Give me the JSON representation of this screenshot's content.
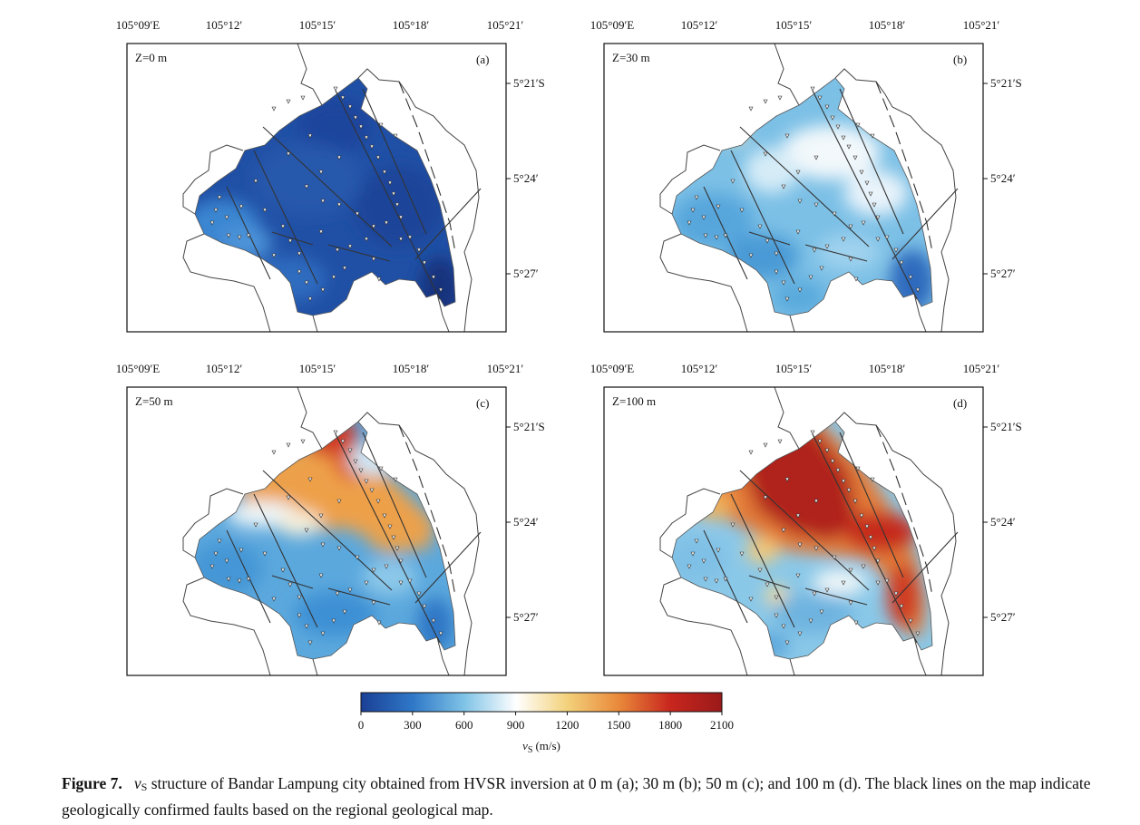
{
  "figure": {
    "longitude_ticks": [
      "105°09′E",
      "105°12′",
      "105°15′",
      "105°18′",
      "105°21′"
    ],
    "latitude_ticks": [
      "5°21′S",
      "5°24′",
      "5°27′"
    ],
    "panels": [
      {
        "id": "a",
        "depth_label": "Z=0 m",
        "panel_tag": "(a)",
        "depth_m": 0
      },
      {
        "id": "b",
        "depth_label": "Z=30 m",
        "panel_tag": "(b)",
        "depth_m": 30
      },
      {
        "id": "c",
        "depth_label": "Z=50 m",
        "panel_tag": "(c)",
        "depth_m": 50
      },
      {
        "id": "d",
        "depth_label": "Z=100 m",
        "panel_tag": "(d)",
        "depth_m": 100
      }
    ],
    "colorbar": {
      "ticks": [
        "0",
        "300",
        "600",
        "900",
        "1200",
        "1500",
        "1800",
        "2100"
      ],
      "min": 0,
      "max": 2100,
      "label_symbol": "v",
      "label_subscript": "S",
      "label_unit": "(m/s)",
      "colors": [
        "#1a3f95",
        "#2f78c8",
        "#7fc3e6",
        "#ffffff",
        "#f3d27c",
        "#e9893a",
        "#c8261e",
        "#9a1a1a"
      ]
    }
  },
  "caption": {
    "figure_label": "Figure 7.",
    "symbol": "v",
    "subscript": "S",
    "text": "structure of Bandar Lampung city obtained from HVSR inversion at 0 m (a); 30 m (b); 50 m (c); and 100 m (d). The black lines on the map indicate geologically confirmed faults based on the regional geological map."
  }
}
